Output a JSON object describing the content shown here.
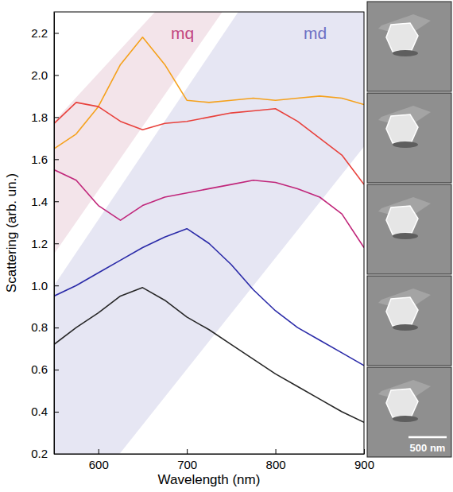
{
  "chart_data": {
    "type": "line",
    "x_label": "Wavelength (nm)",
    "y_label": "Scattering (arb. un.)",
    "xlim": [
      550,
      900
    ],
    "xticks": [
      600,
      700,
      800,
      900
    ],
    "ylim": [
      0.2,
      2.3
    ],
    "yticks": [
      0.2,
      0.4,
      0.6,
      0.8,
      {
        "value": 1,
        "label": "1.0"
      },
      1.2,
      1.4,
      1.6,
      1.8,
      {
        "value": 2,
        "label": "2.0"
      },
      2.2
    ],
    "x": [
      550,
      575,
      600,
      625,
      650,
      675,
      700,
      725,
      750,
      775,
      800,
      825,
      850,
      875,
      900
    ],
    "series": [
      {
        "color": "#f5a11c",
        "values": [
          1.65,
          1.72,
          1.85,
          2.05,
          2.18,
          2.05,
          1.88,
          1.87,
          1.88,
          1.89,
          1.88,
          1.89,
          1.9,
          1.89,
          1.86
        ]
      },
      {
        "color": "#e8413c",
        "values": [
          1.77,
          1.87,
          1.85,
          1.78,
          1.74,
          1.77,
          1.78,
          1.8,
          1.82,
          1.83,
          1.84,
          1.78,
          1.7,
          1.62,
          1.48
        ]
      },
      {
        "color": "#c0267a",
        "values": [
          1.55,
          1.5,
          1.38,
          1.31,
          1.38,
          1.42,
          1.44,
          1.46,
          1.48,
          1.5,
          1.49,
          1.46,
          1.42,
          1.34,
          1.18
        ]
      },
      {
        "color": "#2a2aa8",
        "values": [
          0.95,
          1.0,
          1.06,
          1.12,
          1.18,
          1.23,
          1.27,
          1.2,
          1.1,
          0.98,
          0.88,
          0.8,
          0.74,
          0.68,
          0.62
        ]
      },
      {
        "color": "#262626",
        "values": [
          0.72,
          0.8,
          0.87,
          0.95,
          0.99,
          0.93,
          0.85,
          0.79,
          0.72,
          0.65,
          0.58,
          0.52,
          0.46,
          0.4,
          0.35
        ]
      }
    ],
    "bands": [
      {
        "label": "mq",
        "color": "#f3e4ea",
        "label_color": "#c2457f",
        "x": [
          550,
          550,
          664,
          740
        ],
        "y": [
          1.15,
          1.78,
          2.3,
          2.3
        ],
        "label_x": 695,
        "label_y": 2.17
      },
      {
        "label": "md",
        "color": "#e6e6f3",
        "label_color": "#6d70c4",
        "x": [
          550,
          550,
          758,
          900,
          900,
          624
        ],
        "y": [
          0.2,
          1.0,
          2.3,
          2.3,
          1.66,
          0.2
        ],
        "label_x": 845,
        "label_y": 2.17
      }
    ],
    "scale_bar": "500 nm"
  }
}
